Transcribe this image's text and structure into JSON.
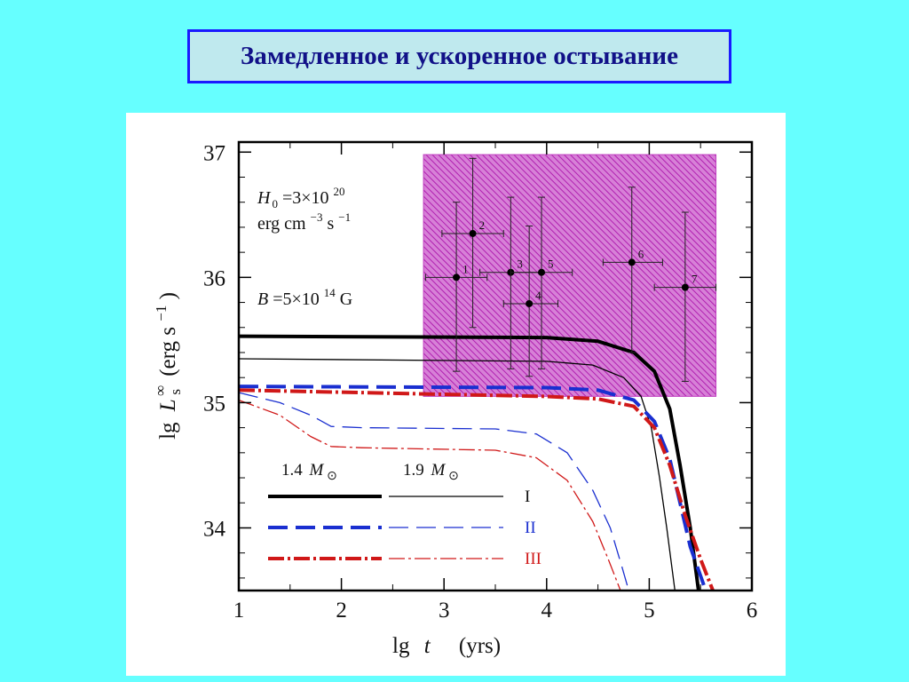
{
  "slide": {
    "title": "Замедленное и ускоренное остывание"
  },
  "colors": {
    "background": "#66ffff",
    "title_border": "#1a1aff",
    "title_text": "#111188",
    "region": "#c040c0",
    "black": "#000000",
    "blue": "#1a2fd0",
    "red": "#d01818"
  },
  "chart_data": {
    "type": "line",
    "xlabel": {
      "main": "lg",
      "var": "t",
      "unit": "(yrs)"
    },
    "ylabel": {
      "main": "lg",
      "var": "L",
      "sub": "s",
      "sup": "∞",
      "unit": "(erg s",
      "unit_sup": "−1",
      "unit_close": ")"
    },
    "xlim": [
      1,
      6
    ],
    "ylim": [
      33.5,
      37.08
    ],
    "xticks": [
      1,
      2,
      3,
      4,
      5,
      6
    ],
    "yticks": [
      34,
      35,
      36,
      37
    ],
    "text_annotations": {
      "h0": {
        "line1_var": "H",
        "line1_sub": "0",
        "line1_eq": "=3×10",
        "line1_sup": "20",
        "line2": "erg cm",
        "line2_sup1": "−3",
        "line2_mid": " s",
        "line2_sup2": "−1"
      },
      "b": {
        "var": "B",
        "eq": "=5×10",
        "sup": "14",
        "unit": " G"
      }
    },
    "legend": {
      "mass_labels": [
        {
          "num": "1.4",
          "var": "M",
          "sub": "⊙"
        },
        {
          "num": "1.9",
          "var": "M",
          "sub": "⊙"
        }
      ],
      "models": [
        {
          "label": "I",
          "color": "black"
        },
        {
          "label": "II",
          "color": "blue"
        },
        {
          "label": "III",
          "color": "red"
        }
      ]
    },
    "observed_region": {
      "x": [
        2.8,
        5.65
      ],
      "y": [
        35.05,
        36.98
      ],
      "pattern": "hatched"
    },
    "observations": [
      {
        "label": "1",
        "x": 3.12,
        "y": 36.0,
        "xerr": [
          0.3,
          0.3
        ],
        "yerr": [
          0.75,
          0.6
        ]
      },
      {
        "label": "2",
        "x": 3.28,
        "y": 36.35,
        "xerr": [
          0.3,
          0.3
        ],
        "yerr": [
          0.75,
          0.6
        ]
      },
      {
        "label": "3",
        "x": 3.65,
        "y": 36.04,
        "xerr": [
          0.3,
          0.3
        ],
        "yerr": [
          0.77,
          0.6
        ]
      },
      {
        "label": "4",
        "x": 3.83,
        "y": 35.79,
        "xerr": [
          0.25,
          0.28
        ],
        "yerr": [
          0.58,
          0.62
        ]
      },
      {
        "label": "5",
        "x": 3.95,
        "y": 36.04,
        "xerr": [
          0.3,
          0.3
        ],
        "yerr": [
          0.77,
          0.6
        ]
      },
      {
        "label": "6",
        "x": 4.83,
        "y": 36.12,
        "xerr": [
          0.28,
          0.3
        ],
        "yerr": [
          0.72,
          0.6
        ]
      },
      {
        "label": "7",
        "x": 5.35,
        "y": 35.92,
        "xerr": [
          0.3,
          0.3
        ],
        "yerr": [
          0.75,
          0.6
        ]
      }
    ],
    "series": [
      {
        "name": "I",
        "mass": "1.4",
        "color": "black",
        "style": "solid",
        "width": "thick",
        "points": [
          [
            1.0,
            35.53
          ],
          [
            4.0,
            35.52
          ],
          [
            4.5,
            35.49
          ],
          [
            4.85,
            35.4
          ],
          [
            5.05,
            35.25
          ],
          [
            5.2,
            34.95
          ],
          [
            5.3,
            34.5
          ],
          [
            5.4,
            34.0
          ],
          [
            5.48,
            33.5
          ]
        ]
      },
      {
        "name": "I",
        "mass": "1.9",
        "color": "black",
        "style": "solid",
        "width": "thin",
        "points": [
          [
            1.0,
            35.35
          ],
          [
            4.0,
            35.33
          ],
          [
            4.45,
            35.3
          ],
          [
            4.75,
            35.2
          ],
          [
            4.92,
            35.05
          ],
          [
            5.02,
            34.8
          ],
          [
            5.1,
            34.4
          ],
          [
            5.17,
            34.0
          ],
          [
            5.25,
            33.5
          ]
        ]
      },
      {
        "name": "II",
        "mass": "1.4",
        "color": "blue",
        "style": "dashed",
        "width": "thick",
        "points": [
          [
            1.0,
            35.13
          ],
          [
            4.0,
            35.12
          ],
          [
            4.5,
            35.1
          ],
          [
            4.85,
            35.02
          ],
          [
            5.05,
            34.85
          ],
          [
            5.2,
            34.55
          ],
          [
            5.3,
            34.2
          ],
          [
            5.4,
            33.85
          ],
          [
            5.55,
            33.5
          ]
        ]
      },
      {
        "name": "II",
        "mass": "1.9",
        "color": "blue",
        "style": "dashed",
        "width": "thin",
        "points": [
          [
            1.0,
            35.08
          ],
          [
            1.4,
            35.0
          ],
          [
            1.7,
            34.9
          ],
          [
            1.9,
            34.81
          ],
          [
            2.2,
            34.8
          ],
          [
            3.5,
            34.79
          ],
          [
            3.9,
            34.75
          ],
          [
            4.2,
            34.6
          ],
          [
            4.45,
            34.3
          ],
          [
            4.62,
            34.0
          ],
          [
            4.73,
            33.7
          ],
          [
            4.8,
            33.5
          ]
        ]
      },
      {
        "name": "III",
        "mass": "1.4",
        "color": "red",
        "style": "dashdot",
        "width": "thick",
        "points": [
          [
            1.0,
            35.1
          ],
          [
            4.0,
            35.05
          ],
          [
            4.5,
            35.03
          ],
          [
            4.85,
            34.97
          ],
          [
            5.05,
            34.8
          ],
          [
            5.2,
            34.5
          ],
          [
            5.35,
            34.1
          ],
          [
            5.5,
            33.75
          ],
          [
            5.62,
            33.5
          ]
        ]
      },
      {
        "name": "III",
        "mass": "1.9",
        "color": "red",
        "style": "dashdot",
        "width": "thin",
        "points": [
          [
            1.0,
            35.02
          ],
          [
            1.4,
            34.9
          ],
          [
            1.7,
            34.73
          ],
          [
            1.9,
            34.65
          ],
          [
            2.2,
            34.64
          ],
          [
            3.5,
            34.62
          ],
          [
            3.9,
            34.56
          ],
          [
            4.2,
            34.38
          ],
          [
            4.45,
            34.05
          ],
          [
            4.6,
            33.75
          ],
          [
            4.72,
            33.5
          ]
        ]
      }
    ]
  }
}
